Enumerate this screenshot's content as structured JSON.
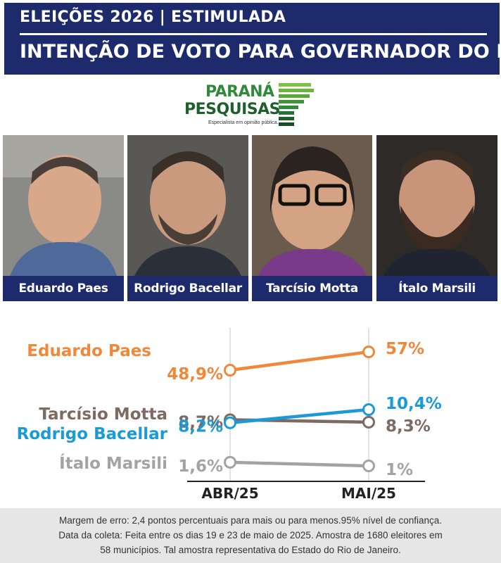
{
  "header": {
    "kicker": "ELEIÇÕES 2026 | ESTIMULADA",
    "title": "INTENÇÃO DE VOTO PARA GOVERNADOR DO RJ",
    "background_color": "#1d2a6b"
  },
  "logo": {
    "word1": "PARANÁ",
    "word2": "PESQUISAS",
    "tagline": "Especialista em opinião pública.",
    "colors": [
      "#7fc242",
      "#5aa83a",
      "#2f8a3a",
      "#1f5f2c"
    ]
  },
  "candidates": [
    {
      "name": "Eduardo Paes",
      "icon": "portrait-icon"
    },
    {
      "name": "Rodrigo Bacellar",
      "icon": "portrait-icon"
    },
    {
      "name": "Tarcísio Motta",
      "icon": "portrait-icon"
    },
    {
      "name": "Ítalo Marsili",
      "icon": "portrait-icon"
    }
  ],
  "chart_data": {
    "type": "line",
    "categories": [
      "ABR/25",
      "MAI/25"
    ],
    "series": [
      {
        "name": "Eduardo Paes",
        "values": [
          48.9,
          57
        ],
        "labels": [
          "48,9%",
          "57%"
        ],
        "color": "#f0883a"
      },
      {
        "name": "Tarcísio Motta",
        "values": [
          8.7,
          8.3
        ],
        "labels": [
          "8,7%",
          "8,3%"
        ],
        "color": "#7d6a62"
      },
      {
        "name": "Rodrigo Bacellar",
        "values": [
          8.2,
          10.4
        ],
        "labels": [
          "8,2%",
          "10,4%"
        ],
        "color": "#1a9ad6"
      },
      {
        "name": "Ítalo Marsili",
        "values": [
          1.6,
          1
        ],
        "labels": [
          "1,6%",
          "1%"
        ],
        "color": "#a3a3a3"
      }
    ],
    "grid": false,
    "legend": "inline-left"
  },
  "footnote": {
    "lines": [
      "Margem de erro: 2,4 pontos percentuais para mais ou para menos.95% nível de confiança.",
      "Data da coleta: Feita  entre os dias 19 e 23 de maio de 2025. Amostra de 1680 eleitores em",
      "58 municípios. Tal amostra representativa do Estado do Rio de Janeiro."
    ]
  }
}
